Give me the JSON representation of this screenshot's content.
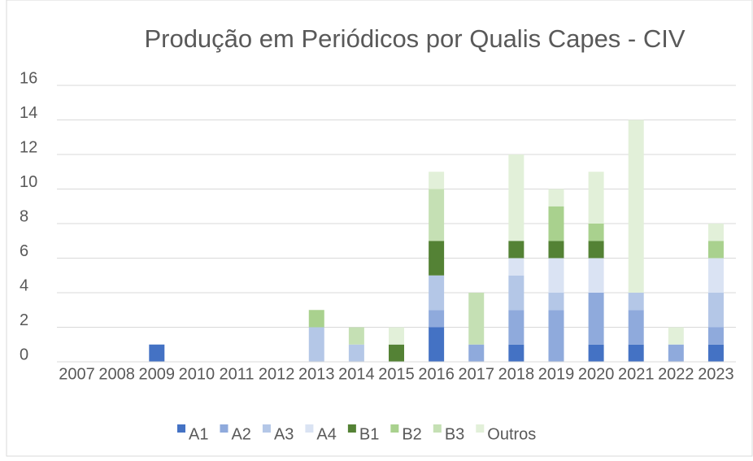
{
  "chart_data": {
    "type": "stacked_bar",
    "title": "Produção em Periódicos por Qualis Capes - CIV",
    "categories": [
      "2007",
      "2008",
      "2009",
      "2010",
      "2011",
      "2012",
      "2013",
      "2014",
      "2015",
      "2016",
      "2017",
      "2018",
      "2019",
      "2020",
      "2021",
      "2022",
      "2023"
    ],
    "series": [
      {
        "name": "A1",
        "color": "#4472c4",
        "values": [
          0,
          0,
          1,
          0,
          0,
          0,
          0,
          0,
          0,
          2,
          0,
          1,
          0,
          1,
          1,
          0,
          1
        ]
      },
      {
        "name": "A2",
        "color": "#8faadc",
        "values": [
          0,
          0,
          0,
          0,
          0,
          0,
          0,
          0,
          0,
          1,
          1,
          2,
          3,
          3,
          2,
          1,
          1
        ]
      },
      {
        "name": "A3",
        "color": "#b4c7e7",
        "values": [
          0,
          0,
          0,
          0,
          0,
          0,
          2,
          1,
          0,
          2,
          0,
          2,
          1,
          0,
          1,
          0,
          2
        ]
      },
      {
        "name": "A4",
        "color": "#dae3f3",
        "values": [
          0,
          0,
          0,
          0,
          0,
          0,
          0,
          0,
          0,
          0,
          0,
          1,
          2,
          2,
          0,
          0,
          2
        ]
      },
      {
        "name": "B1",
        "color": "#548235",
        "values": [
          0,
          0,
          0,
          0,
          0,
          0,
          0,
          0,
          1,
          2,
          0,
          1,
          1,
          1,
          0,
          0,
          0
        ]
      },
      {
        "name": "B2",
        "color": "#a9d18e",
        "values": [
          0,
          0,
          0,
          0,
          0,
          0,
          1,
          0,
          0,
          0,
          0,
          0,
          2,
          1,
          0,
          0,
          1
        ]
      },
      {
        "name": "B3",
        "color": "#c5e0b4",
        "values": [
          0,
          0,
          0,
          0,
          0,
          0,
          0,
          1,
          0,
          3,
          3,
          0,
          0,
          0,
          0,
          0,
          0
        ]
      },
      {
        "name": "Outros",
        "color": "#e2f0d9",
        "values": [
          0,
          0,
          0,
          0,
          0,
          0,
          0,
          0,
          1,
          1,
          0,
          5,
          1,
          3,
          10,
          1,
          1
        ]
      }
    ],
    "ylim": [
      0,
      16
    ],
    "yticks": [
      0,
      2,
      4,
      6,
      8,
      10,
      12,
      14,
      16
    ],
    "grid": true,
    "legend": "bottom"
  }
}
